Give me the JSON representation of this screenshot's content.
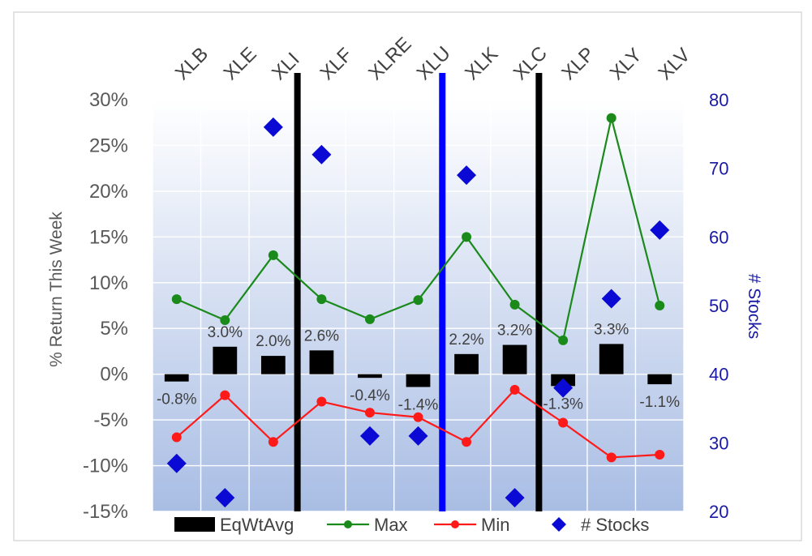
{
  "chart_data": {
    "type": "bar",
    "categories": [
      "XLB",
      "XLE",
      "XLI",
      "XLF",
      "XLRE",
      "XLU",
      "XLK",
      "XLC",
      "XLP",
      "XLY",
      "XLV"
    ],
    "series": [
      {
        "name": "EqWtAvg",
        "kind": "bar",
        "axis": "left",
        "color": "#000000",
        "values": [
          -0.8,
          3.0,
          2.0,
          2.6,
          -0.4,
          -1.4,
          2.2,
          3.2,
          -1.3,
          3.3,
          -1.1
        ],
        "labels": [
          "-0.8%",
          "3.0%",
          "2.0%",
          "2.6%",
          "-0.4%",
          "-1.4%",
          "2.2%",
          "3.2%",
          "-1.3%",
          "3.3%",
          "-1.1%"
        ]
      },
      {
        "name": "Max",
        "kind": "line",
        "axis": "left",
        "color": "#1a8a1a",
        "values": [
          8.2,
          5.9,
          13.0,
          8.2,
          6.0,
          8.1,
          15.0,
          7.6,
          3.7,
          28.0,
          7.5
        ]
      },
      {
        "name": "Min",
        "kind": "line",
        "axis": "left",
        "color": "#ff1a1a",
        "values": [
          -6.9,
          -2.3,
          -7.4,
          -3.0,
          -4.2,
          -4.7,
          -7.4,
          -1.7,
          -5.3,
          -9.1,
          -8.8
        ]
      },
      {
        "name": "# Stocks",
        "kind": "scatter",
        "axis": "right",
        "color": "#0a0ad4",
        "values": [
          27,
          22,
          76,
          72,
          31,
          31,
          69,
          22,
          38,
          51,
          61
        ]
      }
    ],
    "ylabel": "% Return This Week",
    "y2label": "# Stocks",
    "ylim": [
      -15,
      30
    ],
    "y2lim": [
      20,
      80
    ],
    "yticks": [
      "-15%",
      "-10%",
      "-5%",
      "0%",
      "5%",
      "10%",
      "15%",
      "20%",
      "25%",
      "30%"
    ],
    "y2ticks": [
      "20",
      "30",
      "40",
      "50",
      "60",
      "70",
      "80"
    ],
    "divider_after_categories": [
      {
        "after": "XLI",
        "color": "#000000"
      },
      {
        "after": "XLU",
        "color": "#0000ff"
      },
      {
        "after": "XLC",
        "color": "#000000"
      }
    ],
    "legend": {
      "position": "bottom",
      "entries": [
        "EqWtAvg",
        "Max",
        "Min",
        "# Stocks"
      ]
    },
    "grid": true
  }
}
